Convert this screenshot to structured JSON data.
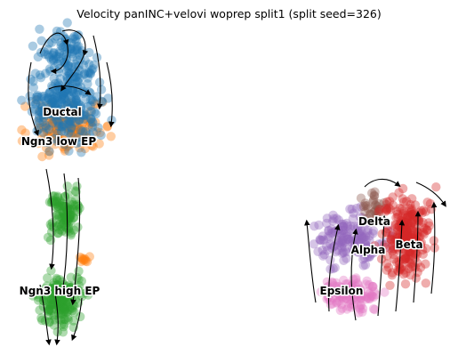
{
  "title": "Velocity panINC+velovi woprep split1 (split seed=326)",
  "chart_data": {
    "type": "scatter",
    "subtype": "velocity-embedding-stream",
    "title": "Velocity panINC+velovi woprep split1 (split seed=326)",
    "xlabel": "",
    "ylabel": "",
    "grid": false,
    "axes_visible": false,
    "legend": "on-data",
    "clusters": [
      {
        "name": "Ductal",
        "color": "#1f77b4"
      },
      {
        "name": "Ngn3 low EP",
        "color": "#ff7f0e"
      },
      {
        "name": "Ngn3 high EP",
        "color": "#2ca02c"
      },
      {
        "name": "Beta",
        "color": "#d62728"
      },
      {
        "name": "Delta",
        "color": "#8c564b"
      },
      {
        "name": "Alpha",
        "color": "#9467bd"
      },
      {
        "name": "Epsilon",
        "color": "#e377c2"
      }
    ]
  }
}
